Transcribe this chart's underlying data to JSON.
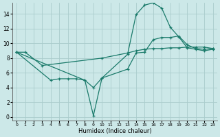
{
  "xlabel": "Humidex (Indice chaleur)",
  "bg_color": "#cce8e8",
  "grid_color": "#aacccc",
  "line_color": "#1a7a6a",
  "xlim": [
    -0.5,
    23.5
  ],
  "ylim": [
    -0.5,
    15.5
  ],
  "xticks": [
    0,
    1,
    2,
    3,
    4,
    5,
    6,
    7,
    8,
    9,
    10,
    11,
    12,
    13,
    14,
    15,
    16,
    17,
    18,
    19,
    20,
    21,
    22,
    23
  ],
  "yticks": [
    0,
    2,
    4,
    6,
    8,
    10,
    12,
    14
  ],
  "line1_x": [
    0,
    1,
    3,
    10,
    13,
    14,
    15,
    16,
    17,
    18,
    19,
    20,
    21,
    22,
    23
  ],
  "line1_y": [
    8.8,
    8.8,
    7.0,
    8.0,
    8.7,
    9.0,
    9.2,
    9.3,
    9.3,
    9.4,
    9.4,
    9.5,
    9.5,
    9.5,
    9.3
  ],
  "line2_x": [
    0,
    8,
    9,
    10,
    13,
    14,
    15,
    16,
    17,
    18,
    19,
    20,
    21,
    22,
    23
  ],
  "line2_y": [
    8.8,
    5.0,
    4.0,
    5.3,
    6.5,
    8.7,
    8.8,
    10.5,
    10.8,
    10.8,
    11.0,
    9.8,
    9.3,
    9.2,
    9.3
  ],
  "line3_x": [
    0,
    4,
    5,
    6,
    7,
    8,
    9,
    10,
    13,
    14,
    15,
    16,
    17,
    18,
    19,
    20,
    21,
    22,
    23
  ],
  "line3_y": [
    8.8,
    5.0,
    5.2,
    5.2,
    5.2,
    5.0,
    0.2,
    5.3,
    8.5,
    13.9,
    15.2,
    15.5,
    14.8,
    12.2,
    10.9,
    9.4,
    9.2,
    9.0,
    9.2
  ]
}
